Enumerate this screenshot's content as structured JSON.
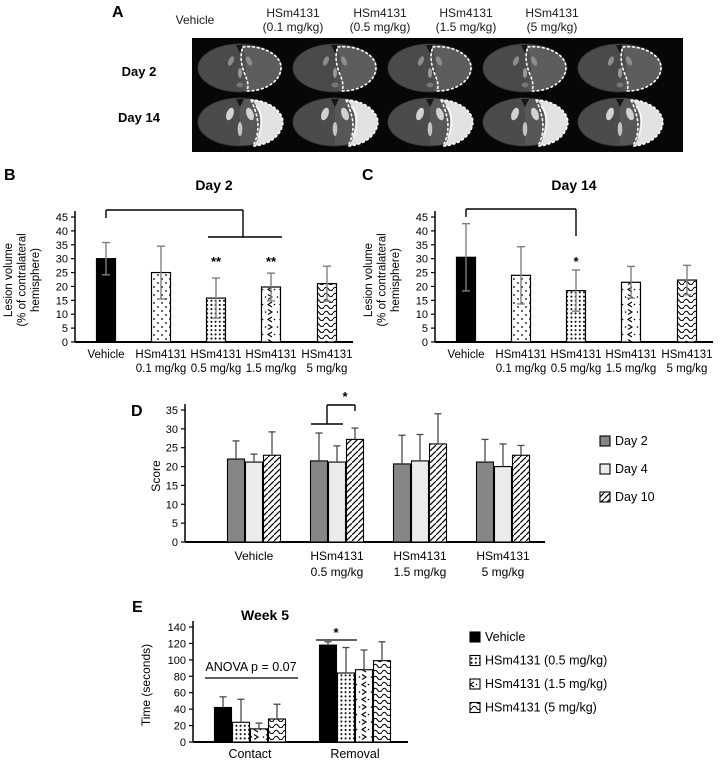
{
  "panels": {
    "A": {
      "label": "A",
      "column_headers": [
        [
          "Vehicle"
        ],
        [
          "HSm4131",
          "(0.1 mg/kg)"
        ],
        [
          "HSm4131",
          "(0.5 mg/kg)"
        ],
        [
          "HSm4131",
          "(1.5 mg/kg)"
        ],
        [
          "HSm4131",
          "(5 mg/kg)"
        ]
      ],
      "row_labels": [
        "Day 2",
        "Day 14"
      ]
    },
    "B": {
      "label": "B"
    },
    "C": {
      "label": "C"
    },
    "D": {
      "label": "D"
    },
    "E": {
      "label": "E"
    }
  },
  "colors": {
    "bar_black": "#000000",
    "bar_gray": "#868686",
    "bar_light": "#ebebeb",
    "error_bar_gray": "#7f7f7f",
    "error_bar_dark": "#4a4a4a",
    "mri_background": "#070707",
    "lesion_outline": "#ffffff"
  },
  "chart_data": [
    {
      "panel": "B",
      "type": "bar",
      "title": "Day 2",
      "ylabel": "Lesion volume (% of contralateral hemisphere)",
      "ylabel_lines": [
        "Lesion volume",
        "(% of contralateral",
        "hemisphere)"
      ],
      "ylim": [
        0,
        45
      ],
      "ytick_step": 5,
      "categories": [
        "Vehicle",
        "HSm4131 0.1 mg/kg",
        "HSm4131 0.5 mg/kg",
        "HSm4131 1.5 mg/kg",
        "HSm4131 5 mg/kg"
      ],
      "category_lines": [
        [
          "Vehicle"
        ],
        [
          "HSm4131",
          "0.1 mg/kg"
        ],
        [
          "HSm4131",
          "0.5 mg/kg"
        ],
        [
          "HSm4131",
          "1.5 mg/kg"
        ],
        [
          "HSm4131",
          "5 mg/kg"
        ]
      ],
      "values": [
        30,
        25,
        15.8,
        19.8,
        21
      ],
      "errors": [
        5.8,
        9.5,
        7.2,
        5,
        6.3
      ],
      "significance": [
        {
          "category_index": 2,
          "text": "**"
        },
        {
          "category_index": 3,
          "text": "**"
        }
      ],
      "comparison_bracket": "Vehicle vs HSm4131 0.5 mg/kg and 1.5 mg/kg"
    },
    {
      "panel": "C",
      "type": "bar",
      "title": "Day 14",
      "ylabel": "Lesion volume (% of contralateral hemisphere)",
      "ylabel_lines": [
        "Lesion volume",
        "(% of contralateral",
        "hemisphere)"
      ],
      "ylim": [
        0,
        45
      ],
      "ytick_step": 5,
      "categories": [
        "Vehicle",
        "HSm4131 0.1 mg/kg",
        "HSm4131 0.5 mg/kg",
        "HSm4131 1.5 mg/kg",
        "HSm4131 5 mg/kg"
      ],
      "category_lines": [
        [
          "Vehicle"
        ],
        [
          "HSm4131",
          "0.1 mg/kg"
        ],
        [
          "HSm4131",
          "0.5 mg/kg"
        ],
        [
          "HSm4131",
          "1.5 mg/kg"
        ],
        [
          "HSm4131",
          "5 mg/kg"
        ]
      ],
      "values": [
        30.5,
        24,
        18.5,
        21.5,
        22.3
      ],
      "errors": [
        12.1,
        10.3,
        7.4,
        5.7,
        5.3
      ],
      "significance": [
        {
          "category_index": 2,
          "text": "*"
        }
      ],
      "comparison_bracket": "Vehicle vs HSm4131 0.5 mg/kg"
    },
    {
      "panel": "D",
      "type": "grouped-bar",
      "title": "",
      "ylabel": "Score",
      "ylim": [
        0,
        35
      ],
      "ytick_step": 5,
      "categories": [
        "Vehicle",
        "HSm4131 0.5 mg/kg",
        "HSm4131 1.5 mg/kg",
        "HSm4131 5 mg/kg"
      ],
      "category_lines": [
        [
          "Vehicle"
        ],
        [
          "HSm4131",
          "0.5 mg/kg"
        ],
        [
          "HSm4131",
          "1.5 mg/kg"
        ],
        [
          "HSm4131",
          "5 mg/kg"
        ]
      ],
      "series": [
        {
          "name": "Day 2",
          "values": [
            22,
            21.5,
            20.7,
            21.2
          ],
          "errors": [
            4.8,
            7.4,
            7.6,
            6
          ]
        },
        {
          "name": "Day 4",
          "values": [
            21.2,
            21.2,
            21.5,
            20
          ],
          "errors": [
            2.1,
            4.3,
            7,
            6
          ]
        },
        {
          "name": "Day 10",
          "values": [
            23,
            27.2,
            26,
            23
          ],
          "errors": [
            6.2,
            3,
            8,
            2.6
          ]
        }
      ],
      "legend": [
        "Day 2",
        "Day 4",
        "Day 10"
      ],
      "significance": [
        {
          "text": "*",
          "note": "Day 2 / Day 4 vs Day 10 within HSm4131 0.5 mg/kg"
        }
      ]
    },
    {
      "panel": "E",
      "type": "grouped-bar",
      "title": "Week 5",
      "ylabel": "Time (seconds)",
      "ylim": [
        0,
        140
      ],
      "ytick_step": 20,
      "categories": [
        "Contact",
        "Removal"
      ],
      "category_lines": [
        [
          "Contact"
        ],
        [
          "Removal"
        ]
      ],
      "series": [
        {
          "name": "Vehicle",
          "values": [
            42,
            118
          ],
          "errors": [
            13,
            4
          ]
        },
        {
          "name": "HSm4131 (0.5 mg/kg)",
          "values": [
            24,
            84
          ],
          "errors": [
            28,
            31
          ]
        },
        {
          "name": "HSm4131 (1.5 mg/kg)",
          "values": [
            16,
            88
          ],
          "errors": [
            7,
            24
          ]
        },
        {
          "name": "HSm4131 (5 mg/kg)",
          "values": [
            28,
            99
          ],
          "errors": [
            18,
            23
          ]
        }
      ],
      "legend": [
        "Vehicle",
        "HSm4131 (0.5 mg/kg)",
        "HSm4131 (1.5 mg/kg)",
        "HSm4131 (5 mg/kg)"
      ],
      "annotations": [
        {
          "text": "ANOVA p = 0.07",
          "target": "Contact"
        },
        {
          "text": "*",
          "target": "Removal: Vehicle vs HSm4131 (0.5 mg/kg)"
        }
      ]
    }
  ]
}
